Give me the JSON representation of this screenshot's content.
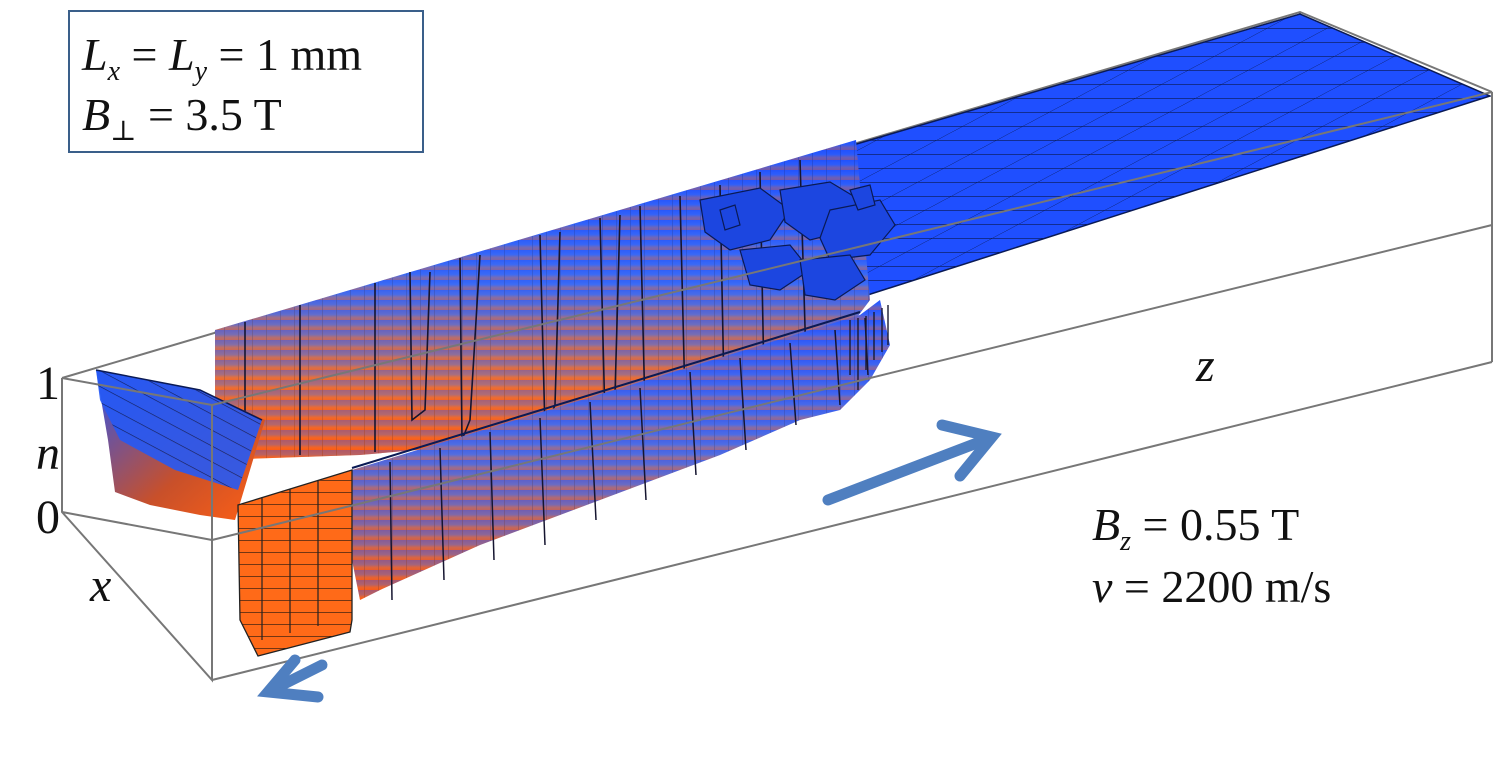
{
  "box": {
    "line1": {
      "L": "L",
      "sub_x": "x",
      "eq1": " = ",
      "L2": "L",
      "sub_y": "y",
      "eq2": " = 1 mm"
    },
    "line2": {
      "B": "B",
      "sub_perp": "⊥",
      "eq": " = 3.5 T"
    }
  },
  "axes": {
    "n_top": "1",
    "n_label": "n",
    "n_bottom": "0",
    "x_label": "x",
    "z_label": "z"
  },
  "note": {
    "line1": {
      "B": "B",
      "sub_z": "z",
      "eq": " = 0.55 T"
    },
    "line2": {
      "v": "v",
      "eq": " = 2200 m/s"
    }
  },
  "colors": {
    "surface_top": "#1f4fff",
    "surface_bottom": "#ff5a10",
    "arrow": "#4f7fc0",
    "box_edge": "#777777",
    "info_border": "#3a5f8a"
  }
}
